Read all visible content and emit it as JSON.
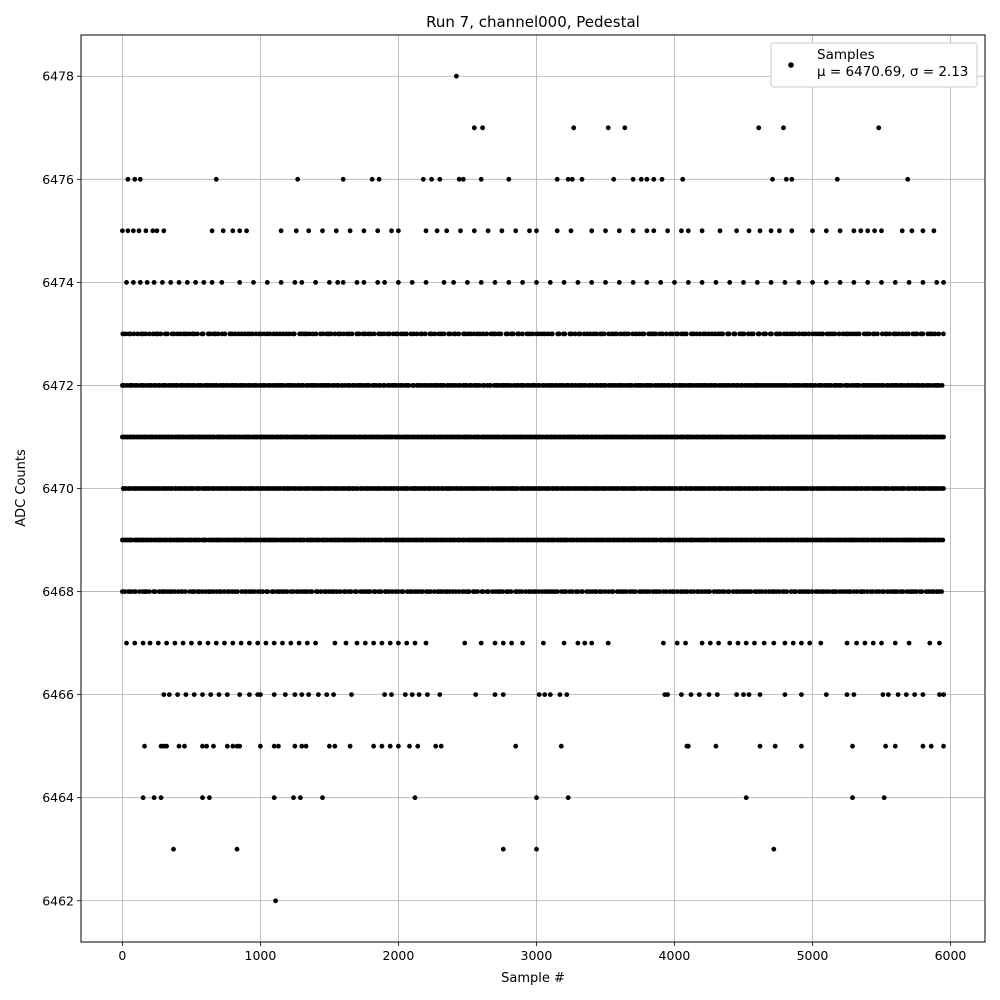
{
  "chart_data": {
    "type": "scatter",
    "title": "Run 7, channel000, Pedestal",
    "xlabel": "Sample #",
    "ylabel": "ADC Counts",
    "xlim": [
      -300,
      6250
    ],
    "ylim": [
      6461.2,
      6478.8
    ],
    "xticks": [
      0,
      1000,
      2000,
      3000,
      4000,
      5000,
      6000
    ],
    "yticks": [
      6462,
      6464,
      6466,
      6468,
      6470,
      6472,
      6474,
      6476,
      6478
    ],
    "grid": true,
    "legend": {
      "placement": "top-right",
      "label": "Samples",
      "stats": "μ = 6470.69, σ = 2.13"
    },
    "marker_color": "#000000",
    "series": [
      {
        "name": "Samples",
        "mean": 6470.69,
        "sigma": 2.13,
        "x_range": [
          0,
          5950
        ],
        "points": [
          [
            2420,
            6478
          ],
          [
            2550,
            6477
          ],
          [
            2610,
            6477
          ],
          [
            3270,
            6477
          ],
          [
            3520,
            6477
          ],
          [
            3640,
            6477
          ],
          [
            4610,
            6477
          ],
          [
            4790,
            6477
          ],
          [
            5480,
            6477
          ],
          [
            40,
            6476
          ],
          [
            90,
            6476
          ],
          [
            130,
            6476
          ],
          [
            680,
            6476
          ],
          [
            1270,
            6476
          ],
          [
            1600,
            6476
          ],
          [
            1810,
            6476
          ],
          [
            1860,
            6476
          ],
          [
            2180,
            6476
          ],
          [
            2240,
            6476
          ],
          [
            2300,
            6476
          ],
          [
            2440,
            6476
          ],
          [
            2470,
            6476
          ],
          [
            2600,
            6476
          ],
          [
            2800,
            6476
          ],
          [
            3150,
            6476
          ],
          [
            3230,
            6476
          ],
          [
            3260,
            6476
          ],
          [
            3330,
            6476
          ],
          [
            3560,
            6476
          ],
          [
            3700,
            6476
          ],
          [
            3760,
            6476
          ],
          [
            3800,
            6476
          ],
          [
            3850,
            6476
          ],
          [
            3910,
            6476
          ],
          [
            4060,
            6476
          ],
          [
            4710,
            6476
          ],
          [
            4810,
            6476
          ],
          [
            4850,
            6476
          ],
          [
            5180,
            6476
          ],
          [
            5690,
            6476
          ],
          [
            370,
            6463
          ],
          [
            830,
            6463
          ],
          [
            2760,
            6463
          ],
          [
            3000,
            6463
          ],
          [
            4720,
            6463
          ],
          [
            1110,
            6462
          ]
        ],
        "sparse_levels": [
          {
            "y": 6475,
            "xs": [
              0,
              40,
              80,
              120,
              170,
              220,
              250,
              300,
              650,
              730,
              800,
              850,
              900,
              1150,
              1260,
              1350,
              1450,
              1550,
              1650,
              1750,
              1850,
              1950,
              2000,
              2200,
              2280,
              2350,
              2450,
              2550,
              2650,
              2750,
              2850,
              2950,
              3000,
              3150,
              3250,
              3400,
              3500,
              3600,
              3700,
              3800,
              3850,
              3950,
              4050,
              4100,
              4200,
              4330,
              4450,
              4540,
              4620,
              4700,
              4760,
              4850,
              5000,
              5100,
              5200,
              5300,
              5350,
              5400,
              5450,
              5500,
              5650,
              5720,
              5800,
              5880
            ]
          },
          {
            "y": 6474,
            "xs": [
              30,
              80,
              130,
              180,
              230,
              290,
              350,
              410,
              470,
              530,
              590,
              650,
              720,
              850,
              950,
              1050,
              1150,
              1250,
              1300,
              1400,
              1500,
              1560,
              1600,
              1700,
              1750,
              1850,
              1900,
              2000,
              2100,
              2200,
              2330,
              2400,
              2500,
              2600,
              2700,
              2800,
              2900,
              3000,
              3100,
              3200,
              3300,
              3400,
              3500,
              3600,
              3700,
              3800,
              3900,
              4000,
              4100,
              4200,
              4300,
              4400,
              4500,
              4600,
              4700,
              4800,
              4900,
              5000,
              5100,
              5200,
              5300,
              5400,
              5500,
              5600,
              5700,
              5800,
              5900,
              5950
            ]
          },
          {
            "y": 6467,
            "xs": [
              30,
              90,
              150,
              200,
              260,
              320,
              380,
              440,
              500,
              560,
              620,
              680,
              740,
              800,
              860,
              920,
              980,
              1040,
              1100,
              1160,
              1220,
              1280,
              1340,
              1400,
              1540,
              1620,
              1700,
              1760,
              1820,
              1880,
              1940,
              2000,
              2060,
              2120,
              2200,
              2480,
              2600,
              2700,
              2760,
              2820,
              2900,
              3050,
              3200,
              3300,
              3350,
              3400,
              3520,
              3920,
              4020,
              4080,
              4200,
              4260,
              4320,
              4400,
              4460,
              4520,
              4580,
              4650,
              4720,
              4800,
              4860,
              4920,
              4980,
              5060,
              5250,
              5320,
              5380,
              5440,
              5500,
              5600,
              5700,
              5850,
              5920
            ]
          },
          {
            "y": 6466,
            "xs": [
              300,
              340,
              400,
              460,
              520,
              580,
              640,
              700,
              760,
              850,
              920,
              980,
              1000,
              1100,
              1180,
              1250,
              1300,
              1350,
              1420,
              1480,
              1530,
              1660,
              1900,
              1950,
              2050,
              2100,
              2150,
              2210,
              2300,
              2560,
              2700,
              2760,
              3020,
              3060,
              3100,
              3170,
              3220,
              3930,
              3950,
              4050,
              4120,
              4180,
              4250,
              4310,
              4450,
              4500,
              4540,
              4620,
              4800,
              4920,
              5100,
              5250,
              5300,
              5510,
              5550,
              5620,
              5680,
              5740,
              5800,
              5920,
              5950
            ]
          },
          {
            "y": 6465,
            "xs": [
              160,
              280,
              300,
              320,
              410,
              450,
              580,
              610,
              660,
              760,
              800,
              830,
              850,
              1000,
              1100,
              1130,
              1250,
              1300,
              1330,
              1500,
              1540,
              1650,
              1820,
              1880,
              1940,
              2000,
              2080,
              2140,
              2270,
              2310,
              2850,
              3180,
              4090,
              4100,
              4300,
              4620,
              4730,
              4920,
              5290,
              5530,
              5600,
              5800,
              5860,
              5950
            ]
          },
          {
            "y": 6464,
            "xs": [
              150,
              230,
              280,
              580,
              630,
              1100,
              1240,
              1290,
              1450,
              2120,
              3000,
              3230,
              4520,
              5290,
              5520
            ]
          }
        ],
        "dense_levels": [
          6468,
          6469,
          6470,
          6471,
          6472,
          6473
        ],
        "dense_spacing": [
          20,
          12,
          14,
          10,
          16,
          22
        ]
      }
    ]
  }
}
